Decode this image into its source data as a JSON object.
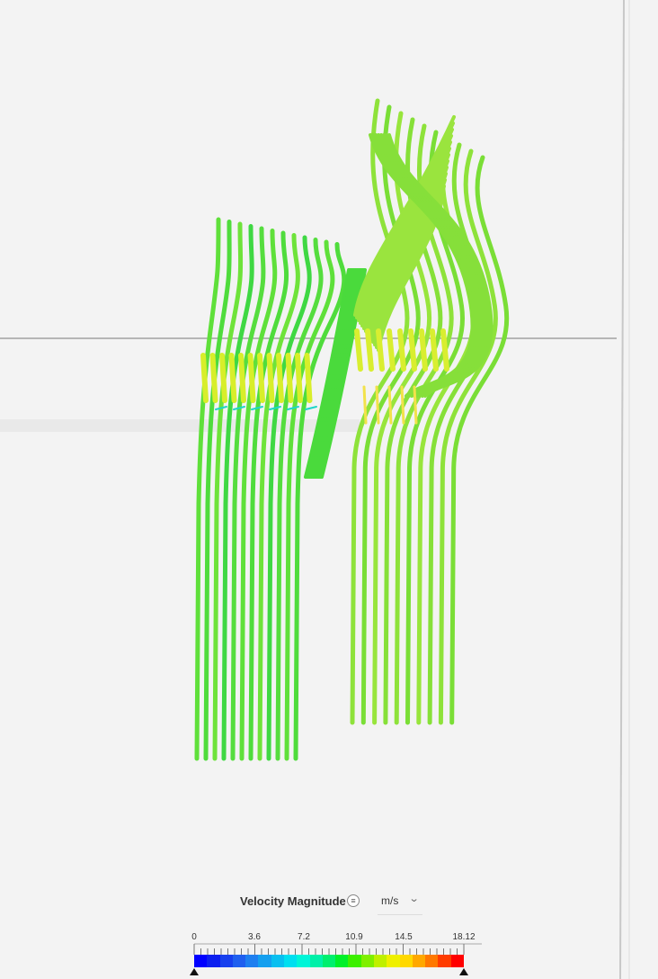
{
  "legend": {
    "title": "Velocity Magnitude",
    "menu_icon": "list-menu-icon",
    "unit": "m/s",
    "unit_dropdown_icon": "chevron-down-icon",
    "min": 0,
    "max": 18.12,
    "tick_labels": [
      "0",
      "3.6",
      "7.2",
      "10.9",
      "14.5",
      "18.12"
    ],
    "colors": [
      "#0000ff",
      "#0b1ff0",
      "#1740ee",
      "#1f5fef",
      "#1e7ff0",
      "#149fef",
      "#09bff0",
      "#00dff0",
      "#00f5d8",
      "#00f0a8",
      "#00ef6e",
      "#00f02a",
      "#3cf000",
      "#7fef00",
      "#bff000",
      "#eff000",
      "#ffd800",
      "#ffa800",
      "#ff7800",
      "#ff3c00",
      "#ff0000"
    ]
  }
}
